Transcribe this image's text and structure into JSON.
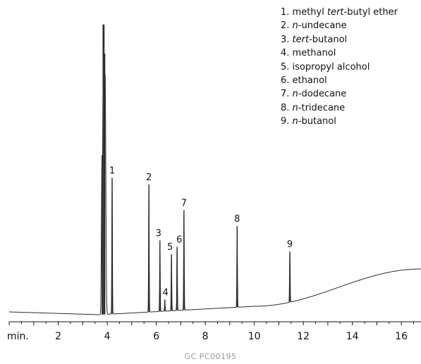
{
  "chart_data": {
    "type": "line",
    "title": "",
    "xlabel": "",
    "ylabel": "",
    "x_unit_label": "min.",
    "xlim": [
      0,
      16.8
    ],
    "xticks": [
      2,
      4,
      6,
      8,
      10,
      12,
      14,
      16
    ],
    "grid": false,
    "line_color": "#2b2b2b",
    "legend": [
      {
        "num": "1.",
        "parts": [
          {
            "t": "methyl ",
            "i": false
          },
          {
            "t": "tert",
            "i": true
          },
          {
            "t": "-butyl ether",
            "i": false
          }
        ]
      },
      {
        "num": "2.",
        "parts": [
          {
            "t": "n",
            "i": true
          },
          {
            "t": "-undecane",
            "i": false
          }
        ]
      },
      {
        "num": "3.",
        "parts": [
          {
            "t": "tert",
            "i": true
          },
          {
            "t": "-butanol",
            "i": false
          }
        ]
      },
      {
        "num": "4.",
        "parts": [
          {
            "t": "methanol",
            "i": false
          }
        ]
      },
      {
        "num": "5.",
        "parts": [
          {
            "t": "isopropyl alcohol",
            "i": false
          }
        ]
      },
      {
        "num": "6.",
        "parts": [
          {
            "t": "ethanol",
            "i": false
          }
        ]
      },
      {
        "num": "7.",
        "parts": [
          {
            "t": "n",
            "i": true
          },
          {
            "t": "-dodecane",
            "i": false
          }
        ]
      },
      {
        "num": "8.",
        "parts": [
          {
            "t": "n",
            "i": true
          },
          {
            "t": "-tridecane",
            "i": false
          }
        ]
      },
      {
        "num": "9.",
        "parts": [
          {
            "t": "n",
            "i": true
          },
          {
            "t": "-butanol",
            "i": false
          }
        ]
      }
    ],
    "peaks": [
      {
        "label": "1",
        "rt": 4.2,
        "height": 0.47
      },
      {
        "label": "2",
        "rt": 5.7,
        "height": 0.44
      },
      {
        "label": "3",
        "rt": 6.15,
        "height": 0.245
      },
      {
        "label": "4",
        "rt": 6.35,
        "height": 0.04
      },
      {
        "label": "5",
        "rt": 6.62,
        "height": 0.195
      },
      {
        "label": "6",
        "rt": 6.85,
        "height": 0.22
      },
      {
        "label": "7",
        "rt": 7.13,
        "height": 0.345
      },
      {
        "label": "8",
        "rt": 9.3,
        "height": 0.28
      },
      {
        "label": "9",
        "rt": 11.45,
        "height": 0.175
      }
    ],
    "solvent_peak": {
      "rt": 3.85,
      "height": 1.0
    }
  },
  "footer": {
    "code": "GC  PC00195"
  }
}
